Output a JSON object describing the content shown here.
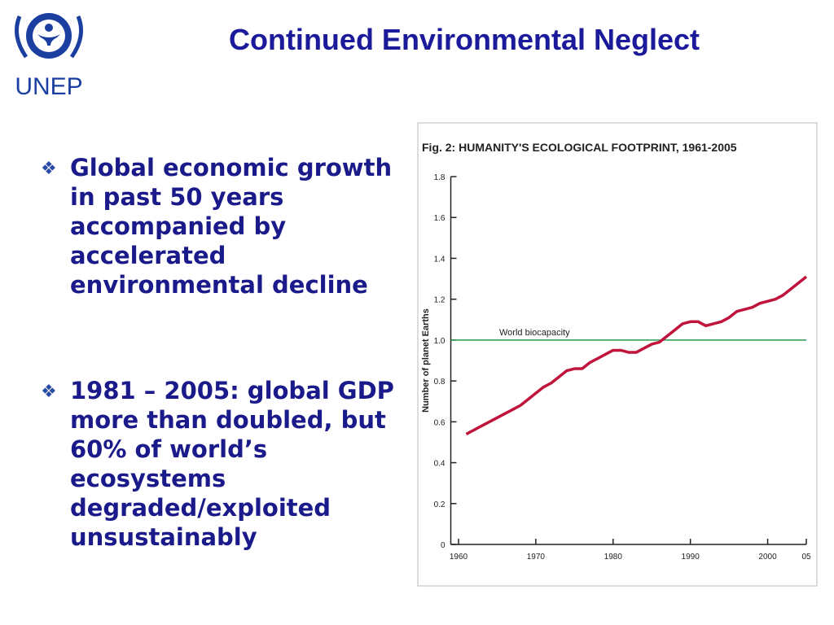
{
  "header": {
    "logo_text": "UNEP",
    "title": "Continued Environmental Neglect"
  },
  "bullets": [
    "Global economic growth in past 50 years accompanied by accelerated environmental decline",
    "1981 – 2005: global GDP more than doubled, but 60% of world’s ecosystems degraded/exploited unsustainably"
  ],
  "chart_data": {
    "type": "line",
    "title": "Fig. 2: HUMANITY'S ECOLOGICAL FOOTPRINT, 1961-2005",
    "y_label": "Number of planet Earths",
    "x": [
      1961,
      1962,
      1963,
      1964,
      1965,
      1966,
      1967,
      1968,
      1969,
      1970,
      1971,
      1972,
      1973,
      1974,
      1975,
      1976,
      1977,
      1978,
      1979,
      1980,
      1981,
      1982,
      1983,
      1984,
      1985,
      1986,
      1987,
      1988,
      1989,
      1990,
      1991,
      1992,
      1993,
      1994,
      1995,
      1996,
      1997,
      1998,
      1999,
      2000,
      2001,
      2002,
      2003,
      2004,
      2005
    ],
    "series": [
      {
        "color": "#c0143c",
        "values": [
          0.54,
          0.56,
          0.58,
          0.6,
          0.62,
          0.64,
          0.66,
          0.68,
          0.71,
          0.74,
          0.77,
          0.79,
          0.82,
          0.85,
          0.86,
          0.86,
          0.89,
          0.91,
          0.93,
          0.95,
          0.95,
          0.94,
          0.94,
          0.96,
          0.98,
          0.99,
          1.02,
          1.05,
          1.08,
          1.09,
          1.09,
          1.07,
          1.08,
          1.09,
          1.11,
          1.14,
          1.15,
          1.16,
          1.18,
          1.19,
          1.2,
          1.22,
          1.25,
          1.28,
          1.31
        ]
      }
    ],
    "reference_line": {
      "label": "World biocapacity",
      "value": 1,
      "color": "#2a9a4a"
    },
    "xlim": [
      1959,
      2005
    ],
    "xticks": [
      1960,
      1970,
      1980,
      1990,
      2000,
      {
        "value": 2005,
        "label": "05"
      }
    ],
    "ylim": [
      0,
      1.8
    ],
    "yticks": [
      0,
      0.2,
      0.4,
      0.6,
      0.8,
      {
        "value": 1,
        "label": "1.0"
      },
      1.2,
      1.4,
      1.6,
      1.8
    ]
  }
}
